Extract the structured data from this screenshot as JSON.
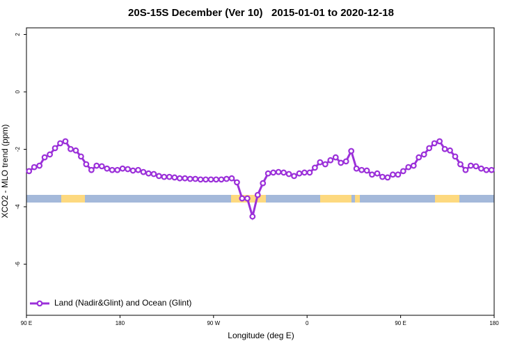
{
  "chart_data": {
    "type": "line",
    "title": "20S-15S December (Ver 10)   2015-01-01 to 2020-12-18",
    "xlabel": "Longitude (deg E)",
    "ylabel": "XCO2 - MLO trend (ppm)",
    "xlim": [
      90,
      540
    ],
    "ylim": [
      -7.78,
      2.23
    ],
    "xticks": [
      {
        "value": 90,
        "label": "90 E"
      },
      180,
      {
        "value": 270,
        "label": "90 W"
      },
      {
        "value": 360,
        "label": "0"
      },
      {
        "value": 450,
        "label": "90 E"
      },
      {
        "value": 540,
        "label": "180"
      }
    ],
    "yticks": [
      2,
      0,
      -2,
      -4,
      -6
    ],
    "x": [
      92.5,
      97.5,
      102.5,
      107.5,
      112.5,
      117.5,
      122.5,
      127.5,
      132.5,
      137.5,
      142.5,
      147.5,
      152.5,
      157.5,
      162.5,
      167.5,
      172.5,
      177.5,
      182.5,
      187.5,
      192.5,
      197.5,
      202.5,
      207.5,
      212.5,
      217.5,
      222.5,
      227.5,
      232.5,
      237.5,
      242.5,
      247.5,
      252.5,
      257.5,
      262.5,
      267.5,
      272.5,
      277.5,
      282.5,
      287.5,
      292.5,
      297.5,
      302.5,
      307.5,
      312.5,
      317.5,
      322.5,
      327.5,
      332.5,
      337.5,
      342.5,
      347.5,
      352.5,
      357.5,
      362.5,
      367.5,
      372.5,
      377.5,
      382.5,
      387.5,
      392.5,
      397.5,
      402.5,
      407.5,
      412.5,
      417.5,
      422.5,
      427.5,
      432.5,
      437.5,
      442.5,
      447.5,
      452.5,
      457.5,
      462.5,
      467.5,
      472.5,
      477.5,
      482.5,
      487.5,
      492.5,
      497.5,
      502.5,
      507.5,
      512.5,
      517.5,
      522.5,
      527.5,
      532.5,
      537.5
    ],
    "series": [
      {
        "name": "Land (Nadir&Glint) and Ocean (Glint)",
        "color": "#9b30d9",
        "values": [
          -2.76,
          -2.62,
          -2.57,
          -2.28,
          -2.18,
          -1.96,
          -1.79,
          -1.72,
          -1.99,
          -2.04,
          -2.25,
          -2.52,
          -2.72,
          -2.57,
          -2.59,
          -2.67,
          -2.72,
          -2.72,
          -2.67,
          -2.69,
          -2.74,
          -2.72,
          -2.79,
          -2.84,
          -2.86,
          -2.93,
          -2.96,
          -2.96,
          -2.98,
          -3.01,
          -3.01,
          -3.03,
          -3.03,
          -3.05,
          -3.05,
          -3.05,
          -3.05,
          -3.05,
          -3.03,
          -3.01,
          -3.15,
          -3.71,
          -3.71,
          -4.34,
          -3.59,
          -3.18,
          -2.84,
          -2.81,
          -2.79,
          -2.81,
          -2.86,
          -2.93,
          -2.84,
          -2.81,
          -2.81,
          -2.64,
          -2.45,
          -2.52,
          -2.38,
          -2.28,
          -2.47,
          -2.42,
          -2.06,
          -2.67,
          -2.72,
          -2.74,
          -2.88,
          -2.84,
          -2.96,
          -2.98,
          -2.88,
          -2.88,
          -2.76,
          -2.62,
          -2.57,
          -2.28,
          -2.18,
          -1.96,
          -1.79,
          -1.72,
          -1.99,
          -2.04,
          -2.25,
          -2.52,
          -2.72,
          -2.57,
          -2.59,
          -2.67,
          -2.72,
          -2.72
        ]
      }
    ],
    "legend": "bottom-left"
  }
}
